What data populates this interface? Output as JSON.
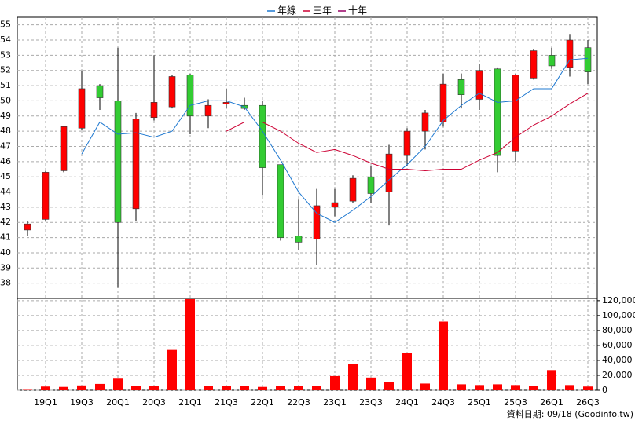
{
  "chart_data": {
    "type": "candlestick",
    "categories": [
      null,
      "19Q1",
      null,
      "19Q3",
      null,
      "20Q1",
      null,
      "20Q3",
      null,
      "21Q1",
      null,
      "21Q3",
      null,
      "22Q1",
      null,
      "22Q3",
      null,
      "23Q1",
      null,
      "23Q3",
      null,
      "24Q1",
      null,
      "24Q3",
      null,
      "25Q1",
      null,
      "25Q3",
      null,
      "26Q1",
      null,
      "26Q3"
    ],
    "open": [
      41.5,
      42.2,
      45.4,
      48.2,
      51.0,
      50.0,
      42.9,
      48.9,
      49.6,
      51.7,
      49.0,
      49.8,
      49.7,
      49.7,
      45.8,
      41.1,
      40.9,
      43.0,
      43.4,
      45.0,
      44.0,
      46.4,
      48.0,
      48.6,
      51.4,
      50.1,
      52.1,
      46.7,
      51.5,
      53.0,
      52.2,
      53.5
    ],
    "high": [
      42.1,
      45.4,
      48.3,
      52.0,
      51.1,
      53.5,
      49.2,
      53.0,
      51.7,
      51.8,
      50.1,
      50.8,
      50.2,
      50.0,
      45.8,
      43.5,
      44.2,
      44.2,
      45.1,
      45.7,
      47.1,
      48.2,
      49.4,
      51.8,
      51.8,
      52.4,
      52.2,
      51.8,
      53.4,
      53.5,
      54.4,
      54.0
    ],
    "low": [
      41.1,
      42.1,
      45.3,
      48.1,
      49.4,
      37.7,
      42.1,
      48.7,
      49.5,
      47.8,
      48.2,
      49.5,
      49.4,
      43.8,
      40.8,
      40.2,
      39.2,
      42.4,
      43.3,
      43.3,
      41.8,
      45.7,
      46.8,
      48.3,
      49.5,
      49.4,
      45.3,
      46.0,
      51.4,
      52.1,
      51.6,
      51.1
    ],
    "close": [
      41.9,
      45.3,
      48.3,
      50.8,
      50.2,
      42.0,
      48.8,
      49.9,
      51.6,
      49.0,
      49.7,
      49.9,
      49.5,
      45.6,
      41.0,
      40.7,
      43.1,
      43.3,
      44.9,
      43.9,
      46.5,
      48.0,
      49.2,
      51.1,
      50.4,
      52.0,
      46.4,
      51.7,
      53.3,
      52.3,
      54.0,
      51.9
    ],
    "up_color": "#ff0000",
    "down_color": "#33cc33",
    "series": [
      {
        "name": "年線",
        "color": "#1e78d0",
        "values": [
          null,
          null,
          null,
          46.5,
          48.6,
          47.8,
          47.9,
          47.6,
          48.0,
          49.7,
          50.0,
          50.0,
          49.6,
          48.0,
          46.1,
          44.0,
          42.6,
          42.0,
          42.8,
          43.7,
          44.8,
          45.8,
          47.0,
          48.7,
          49.7,
          50.5,
          49.9,
          50.0,
          50.8,
          50.8,
          52.7,
          52.8
        ]
      },
      {
        "name": "三年",
        "color": "#cc0033",
        "values": [
          null,
          null,
          null,
          null,
          null,
          null,
          null,
          null,
          null,
          null,
          null,
          48.0,
          48.6,
          48.6,
          48.0,
          47.2,
          46.6,
          46.8,
          46.4,
          45.9,
          45.5,
          45.5,
          45.4,
          45.5,
          45.5,
          46.1,
          46.6,
          47.6,
          48.4,
          49.0,
          49.8,
          50.5
        ]
      },
      {
        "name": "十年",
        "color": "#990066",
        "values": [
          null,
          null,
          null,
          null,
          null,
          null,
          null,
          null,
          null,
          null,
          null,
          null,
          null,
          null,
          null,
          null,
          null,
          null,
          null,
          null,
          null,
          null,
          null,
          null,
          null,
          null,
          null,
          null,
          null,
          null,
          null,
          null
        ]
      }
    ],
    "ylim": [
      37,
      55.5
    ],
    "yticks": [
      38,
      39,
      40,
      41,
      42,
      43,
      44,
      45,
      46,
      47,
      48,
      49,
      50,
      51,
      52,
      53,
      54,
      55
    ],
    "volume": {
      "color": "#ff0000",
      "values": [
        500,
        5000,
        4500,
        6500,
        8500,
        15500,
        6000,
        6000,
        54000,
        122000,
        6000,
        6000,
        6000,
        4500,
        5500,
        5500,
        6000,
        19000,
        35000,
        17000,
        11000,
        50000,
        9000,
        92000,
        8000,
        7000,
        8000,
        7000,
        6000,
        27000,
        7000,
        5000
      ],
      "ylim": [
        0,
        123000
      ],
      "yticks": [
        0,
        {
          "value": 20000,
          "label": "20,000"
        },
        {
          "value": 40000,
          "label": "40,000"
        },
        {
          "value": 60000,
          "label": "60,000"
        },
        {
          "value": 80000,
          "label": "80,000"
        },
        {
          "value": 100000,
          "label": "100,000"
        },
        {
          "value": 120000,
          "label": "120,000"
        }
      ]
    },
    "grid": true,
    "source_note": "資料日期: 09/18 (Goodinfo.tw)"
  }
}
